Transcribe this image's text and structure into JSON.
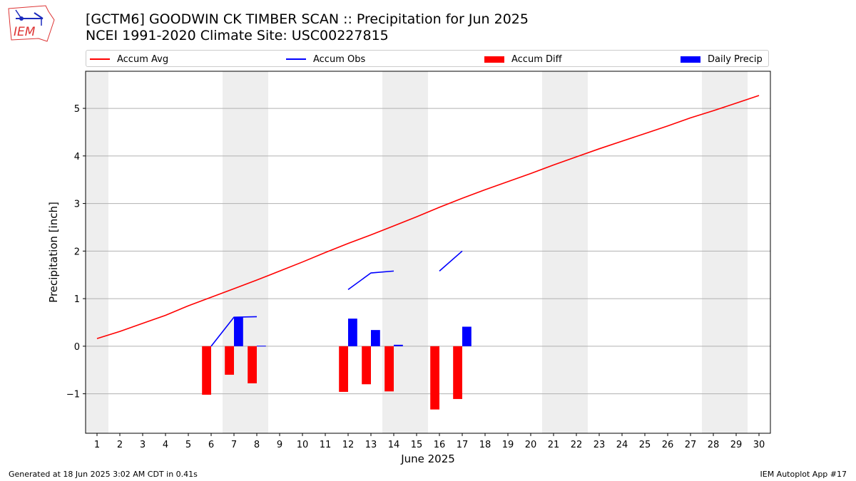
{
  "header": {
    "title_line1": "[GCTM6] GOODWIN CK TIMBER SCAN :: Precipitation for Jun 2025",
    "title_line2": "NCEI 1991-2020 Climate Site: USC00227815",
    "logo_text": "IEM"
  },
  "legend": {
    "items": [
      {
        "label": "Accum Avg",
        "kind": "line",
        "color": "#ff0000"
      },
      {
        "label": "Accum Obs",
        "kind": "line",
        "color": "#0000ff"
      },
      {
        "label": "Accum Diff",
        "kind": "patch",
        "color": "#ff0000"
      },
      {
        "label": "Daily Precip",
        "kind": "patch",
        "color": "#0000ff"
      }
    ]
  },
  "footer": {
    "left": "Generated at 18 Jun 2025 3:02 AM CDT in 0.41s",
    "right": "IEM Autoplot App #17"
  },
  "chart_data": {
    "type": "bar",
    "title": "[GCTM6] GOODWIN CK TIMBER SCAN :: Precipitation for Jun 2025",
    "subtitle": "NCEI 1991-2020 Climate Site: USC00227815",
    "xlabel": "June 2025",
    "ylabel": "Precipitation [inch]",
    "xlim": [
      0.5,
      30.5
    ],
    "ylim": [
      -1.83,
      5.78
    ],
    "yticks": [
      -1,
      0,
      1,
      2,
      3,
      4,
      5
    ],
    "ytick_labels": [
      "−1",
      "0",
      "1",
      "2",
      "3",
      "4",
      "5"
    ],
    "x": [
      1,
      2,
      3,
      4,
      5,
      6,
      7,
      8,
      9,
      10,
      11,
      12,
      13,
      14,
      15,
      16,
      17,
      18,
      19,
      20,
      21,
      22,
      23,
      24,
      25,
      26,
      27,
      28,
      29,
      30
    ],
    "xtick_labels": [
      "1",
      "2",
      "3",
      "4",
      "5",
      "6",
      "7",
      "8",
      "9",
      "10",
      "11",
      "12",
      "13",
      "14",
      "15",
      "16",
      "17",
      "18",
      "19",
      "20",
      "21",
      "22",
      "23",
      "24",
      "25",
      "26",
      "27",
      "28",
      "29",
      "30"
    ],
    "grid": "y-axis",
    "legend_position": "top",
    "weekend_shading": [
      [
        0.5,
        1.5
      ],
      [
        6.5,
        8.5
      ],
      [
        13.5,
        15.5
      ],
      [
        20.5,
        22.5
      ],
      [
        27.5,
        29.5
      ]
    ],
    "series": [
      {
        "name": "Accum Avg",
        "kind": "line",
        "color": "#ff0000",
        "points": [
          [
            1,
            0.16
          ],
          [
            2,
            0.31
          ],
          [
            3,
            0.48
          ],
          [
            4,
            0.65
          ],
          [
            5,
            0.85
          ],
          [
            6,
            1.03
          ],
          [
            7,
            1.21
          ],
          [
            8,
            1.39
          ],
          [
            9,
            1.58
          ],
          [
            10,
            1.77
          ],
          [
            11,
            1.97
          ],
          [
            12,
            2.16
          ],
          [
            13,
            2.34
          ],
          [
            14,
            2.53
          ],
          [
            15,
            2.72
          ],
          [
            16,
            2.92
          ],
          [
            17,
            3.11
          ],
          [
            18,
            3.29
          ],
          [
            19,
            3.46
          ],
          [
            20,
            3.63
          ],
          [
            21,
            3.81
          ],
          [
            22,
            3.98
          ],
          [
            23,
            4.15
          ],
          [
            24,
            4.31
          ],
          [
            25,
            4.47
          ],
          [
            26,
            4.63
          ],
          [
            27,
            4.8
          ],
          [
            28,
            4.95
          ],
          [
            29,
            5.11
          ],
          [
            30,
            5.27
          ]
        ]
      },
      {
        "name": "Accum Obs",
        "kind": "line",
        "color": "#0000ff",
        "segments": [
          [
            [
              6,
              0.0
            ],
            [
              7,
              0.61
            ],
            [
              8,
              0.62
            ]
          ],
          [
            [
              12,
              1.19
            ],
            [
              13,
              1.54
            ],
            [
              14,
              1.58
            ]
          ],
          [
            [
              16,
              1.58
            ],
            [
              17,
              2.0
            ]
          ]
        ]
      },
      {
        "name": "Accum Diff",
        "kind": "bar",
        "color": "#ff0000",
        "offset": -0.2,
        "points": [
          [
            6,
            -1.02
          ],
          [
            7,
            -0.6
          ],
          [
            8,
            -0.78
          ],
          [
            12,
            -0.96
          ],
          [
            13,
            -0.8
          ],
          [
            14,
            -0.95
          ],
          [
            16,
            -1.33
          ],
          [
            17,
            -1.11
          ]
        ]
      },
      {
        "name": "Daily Precip",
        "kind": "bar",
        "color": "#0000ff",
        "offset": 0.2,
        "points": [
          [
            7,
            0.61
          ],
          [
            8,
            0.01
          ],
          [
            12,
            0.58
          ],
          [
            13,
            0.34
          ],
          [
            14,
            0.03
          ],
          [
            17,
            0.41
          ]
        ]
      }
    ]
  }
}
